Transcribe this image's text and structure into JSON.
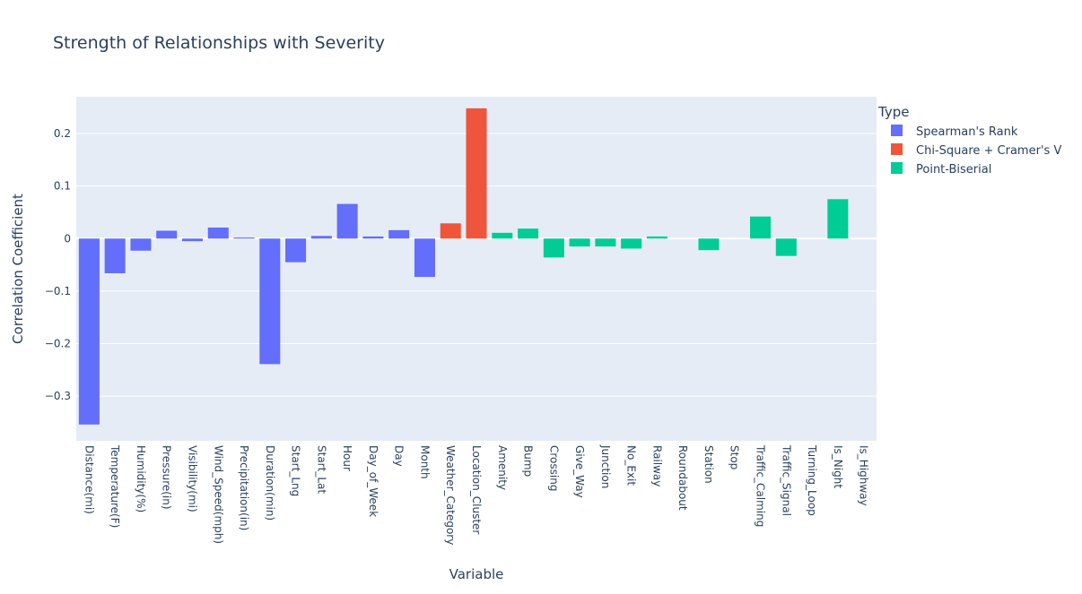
{
  "chart_data": {
    "type": "bar",
    "title": "Strength of Relationships with Severity",
    "xlabel": "Variable",
    "ylabel": "Correlation Coefficient",
    "ylim": [
      -0.385,
      0.27
    ],
    "yticks": [
      0.2,
      0.1,
      0,
      -0.1,
      -0.2,
      -0.3
    ],
    "ytick_labels": [
      "0.2",
      "0.1",
      "0",
      "−0.1",
      "−0.2",
      "−0.3"
    ],
    "grid": true,
    "legend": {
      "title": "Type",
      "position": "top-right"
    },
    "series": [
      {
        "name": "Spearman's Rank",
        "color": "#636efa",
        "points": [
          {
            "x": "Distance(mi)",
            "y": -0.354
          },
          {
            "x": "Temperature(F)",
            "y": -0.066
          },
          {
            "x": "Humidity(%)",
            "y": -0.023
          },
          {
            "x": "Pressure(in)",
            "y": 0.015
          },
          {
            "x": "Visibility(mi)",
            "y": -0.005
          },
          {
            "x": "Wind_Speed(mph)",
            "y": 0.021
          },
          {
            "x": "Precipitation(in)",
            "y": 0.002
          },
          {
            "x": "Duration(min)",
            "y": -0.239
          },
          {
            "x": "Start_Lng",
            "y": -0.045
          },
          {
            "x": "Start_Lat",
            "y": 0.005
          },
          {
            "x": "Hour",
            "y": 0.066
          },
          {
            "x": "Day_of_Week",
            "y": 0.004
          },
          {
            "x": "Day",
            "y": 0.016
          },
          {
            "x": "Month",
            "y": -0.073
          }
        ]
      },
      {
        "name": "Chi-Square + Cramer's V",
        "color": "#ef553b",
        "points": [
          {
            "x": "Weather_Category",
            "y": 0.029
          },
          {
            "x": "Location_Cluster",
            "y": 0.248
          }
        ]
      },
      {
        "name": "Point-Biserial",
        "color": "#00cc96",
        "points": [
          {
            "x": "Amenity",
            "y": 0.011
          },
          {
            "x": "Bump",
            "y": 0.019
          },
          {
            "x": "Crossing",
            "y": -0.036
          },
          {
            "x": "Give_Way",
            "y": -0.015
          },
          {
            "x": "Junction",
            "y": -0.015
          },
          {
            "x": "No_Exit",
            "y": -0.019
          },
          {
            "x": "Railway",
            "y": 0.004
          },
          {
            "x": "Roundabout",
            "y": 0.0
          },
          {
            "x": "Station",
            "y": -0.022
          },
          {
            "x": "Stop",
            "y": 0.0
          },
          {
            "x": "Traffic_Calming",
            "y": 0.042
          },
          {
            "x": "Traffic_Signal",
            "y": -0.033
          },
          {
            "x": "Turning_Loop",
            "y": 0.0
          },
          {
            "x": "Is_Night",
            "y": 0.075
          },
          {
            "x": "Is_Highway",
            "y": 0.0
          }
        ]
      }
    ]
  }
}
